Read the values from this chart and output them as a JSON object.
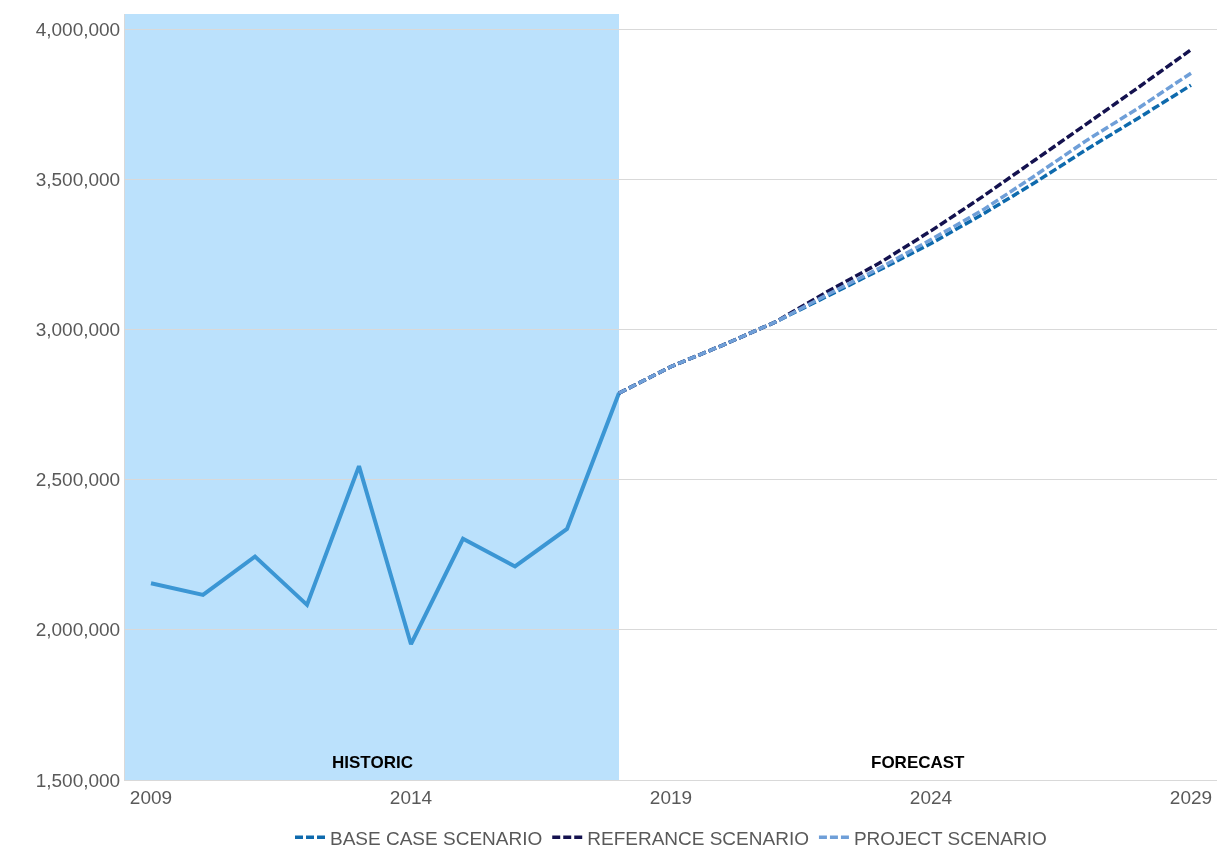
{
  "chart_data": {
    "type": "line",
    "xlim": [
      2008.5,
      2029.5
    ],
    "xticks": [
      2009,
      2014,
      2019,
      2024,
      2029
    ],
    "ylim": [
      1500000,
      4050000
    ],
    "yticks": [
      {
        "value": 1500000,
        "label": "1,500,000"
      },
      {
        "value": 2000000,
        "label": "2,000,000"
      },
      {
        "value": 2500000,
        "label": "2,500,000"
      },
      {
        "value": 3000000,
        "label": "3,000,000"
      },
      {
        "value": 3500000,
        "label": "3,500,000"
      },
      {
        "value": 4000000,
        "label": "4,000,000"
      }
    ],
    "grid": "y",
    "legend": "bottom",
    "marker": "none",
    "bands": [
      {
        "axis": "x",
        "from": 2008.5,
        "to": 2018,
        "label": "HISTORIC",
        "color": "#bbe1fc"
      }
    ],
    "annotations": [
      "FORECAST"
    ],
    "series": [
      {
        "color": "#3b96d4",
        "line_style": "solid",
        "x": [
          2009,
          2010,
          2011,
          2012,
          2013,
          2014,
          2015,
          2016,
          2017,
          2018
        ],
        "values": [
          2155000,
          2116000,
          2244000,
          2083000,
          2545000,
          1952000,
          2303000,
          2211000,
          2336000,
          2788000
        ]
      },
      {
        "name": "BASE CASE SCENARIO",
        "color": "#0e6aad",
        "line_style": "dashed",
        "x": [
          2018,
          2019,
          2020,
          2021,
          2022,
          2023,
          2024,
          2025,
          2026,
          2027,
          2028,
          2029
        ],
        "values": [
          2788000,
          2876000,
          2948000,
          3024000,
          3110000,
          3197000,
          3286000,
          3384000,
          3489000,
          3600000,
          3705000,
          3813000
        ]
      },
      {
        "name": "REFERANCE SCENARIO",
        "color": "#14124f",
        "line_style": "dashed",
        "x": [
          2018,
          2019,
          2020,
          2021,
          2022,
          2023,
          2024,
          2025,
          2026,
          2027,
          2028,
          2029
        ],
        "values": [
          2788000,
          2876000,
          2948000,
          3024000,
          3125000,
          3220000,
          3328000,
          3443000,
          3564000,
          3685000,
          3807000,
          3931000
        ]
      },
      {
        "name": "PROJECT SCENARIO",
        "color": "#6f9fd8",
        "line_style": "dashed",
        "x": [
          2018,
          2019,
          2020,
          2021,
          2022,
          2023,
          2024,
          2025,
          2026,
          2027,
          2028,
          2029
        ],
        "values": [
          2788000,
          2876000,
          2948000,
          3024000,
          3115000,
          3203000,
          3299000,
          3398000,
          3512000,
          3630000,
          3738000,
          3853000
        ]
      }
    ]
  }
}
